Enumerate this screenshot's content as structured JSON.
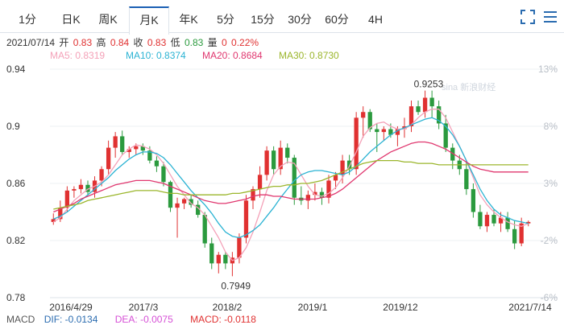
{
  "tabs": [
    "1分",
    "日K",
    "周K",
    "月K",
    "年K",
    "5分",
    "15分",
    "30分",
    "60分",
    "4H"
  ],
  "active_tab": "月K",
  "icons": {
    "fullscreen": "fullscreen-icon",
    "menu": "menu-icon"
  },
  "info": {
    "date": "2021/07/14",
    "open_label": "开",
    "open": "0.83",
    "high_label": "高",
    "high": "0.84",
    "close_label": "收",
    "close": "0.83",
    "low_label": "低",
    "low": "0.83",
    "vol_label": "量",
    "vol": "0",
    "change": "0.22%"
  },
  "ma": {
    "ma5": "MA5: 0.8319",
    "ma10": "MA10: 0.8374",
    "ma20": "MA20: 0.8684",
    "ma30": "MA30: 0.8730"
  },
  "colors": {
    "ma5": "#f4a1b8",
    "ma10": "#2bb3d3",
    "ma20": "#e0376f",
    "ma30": "#9bb62c",
    "up": "#e03131",
    "down": "#2b9a3e"
  },
  "watermark": "sina 新浪财经",
  "annotations": {
    "max": "0.9253",
    "min": "0.7949"
  },
  "macd": {
    "label": "MACD",
    "dif": "DIF: -0.0134",
    "dea": "DEA: -0.0075",
    "macd": "MACD: -0.0118"
  },
  "chart_data": {
    "type": "candlestick",
    "y_left_ticks": [
      "0.94",
      "0.9",
      "0.86",
      "0.82",
      "0.78"
    ],
    "y_right_ticks": [
      "13%",
      "8%",
      "3%",
      "-2%",
      "-6%"
    ],
    "x_ticks": [
      "2016/4/29",
      "2017/3",
      "2018/2",
      "2019/1",
      "2019/12",
      "2021/7/14"
    ],
    "ylim": [
      0.78,
      0.94
    ],
    "candles": [
      [
        0.833,
        0.839,
        0.831,
        0.835
      ],
      [
        0.835,
        0.848,
        0.833,
        0.843
      ],
      [
        0.843,
        0.858,
        0.84,
        0.855
      ],
      [
        0.855,
        0.858,
        0.85,
        0.856
      ],
      [
        0.856,
        0.863,
        0.853,
        0.859
      ],
      [
        0.859,
        0.862,
        0.852,
        0.854
      ],
      [
        0.854,
        0.865,
        0.85,
        0.862
      ],
      [
        0.862,
        0.872,
        0.858,
        0.87
      ],
      [
        0.87,
        0.89,
        0.866,
        0.885
      ],
      [
        0.885,
        0.896,
        0.878,
        0.893
      ],
      [
        0.893,
        0.897,
        0.88,
        0.882
      ],
      [
        0.882,
        0.886,
        0.878,
        0.884
      ],
      [
        0.884,
        0.888,
        0.88,
        0.886
      ],
      [
        0.886,
        0.888,
        0.88,
        0.883
      ],
      [
        0.883,
        0.886,
        0.874,
        0.876
      ],
      [
        0.876,
        0.879,
        0.868,
        0.872
      ],
      [
        0.872,
        0.875,
        0.858,
        0.861
      ],
      [
        0.861,
        0.862,
        0.84,
        0.843
      ],
      [
        0.843,
        0.85,
        0.822,
        0.846
      ],
      [
        0.846,
        0.85,
        0.842,
        0.849
      ],
      [
        0.849,
        0.852,
        0.843,
        0.845
      ],
      [
        0.845,
        0.848,
        0.836,
        0.838
      ],
      [
        0.838,
        0.84,
        0.815,
        0.818
      ],
      [
        0.818,
        0.822,
        0.8,
        0.804
      ],
      [
        0.804,
        0.812,
        0.797,
        0.81
      ],
      [
        0.81,
        0.812,
        0.8,
        0.804
      ],
      [
        0.804,
        0.812,
        0.795,
        0.808
      ],
      [
        0.808,
        0.825,
        0.804,
        0.822
      ],
      [
        0.822,
        0.852,
        0.818,
        0.848
      ],
      [
        0.848,
        0.858,
        0.842,
        0.856
      ],
      [
        0.856,
        0.872,
        0.85,
        0.866
      ],
      [
        0.866,
        0.886,
        0.862,
        0.883
      ],
      [
        0.883,
        0.886,
        0.866,
        0.87
      ],
      [
        0.87,
        0.89,
        0.866,
        0.885
      ],
      [
        0.885,
        0.888,
        0.874,
        0.878
      ],
      [
        0.878,
        0.88,
        0.845,
        0.85
      ],
      [
        0.85,
        0.858,
        0.845,
        0.848
      ],
      [
        0.848,
        0.855,
        0.842,
        0.852
      ],
      [
        0.852,
        0.86,
        0.848,
        0.854
      ],
      [
        0.854,
        0.857,
        0.845,
        0.85
      ],
      [
        0.85,
        0.866,
        0.846,
        0.862
      ],
      [
        0.862,
        0.868,
        0.856,
        0.866
      ],
      [
        0.866,
        0.88,
        0.86,
        0.876
      ],
      [
        0.876,
        0.88,
        0.866,
        0.87
      ],
      [
        0.87,
        0.91,
        0.866,
        0.906
      ],
      [
        0.906,
        0.914,
        0.892,
        0.91
      ],
      [
        0.91,
        0.912,
        0.896,
        0.898
      ],
      [
        0.898,
        0.902,
        0.882,
        0.896
      ],
      [
        0.896,
        0.9,
        0.89,
        0.898
      ],
      [
        0.898,
        0.902,
        0.892,
        0.894
      ],
      [
        0.894,
        0.9,
        0.886,
        0.898
      ],
      [
        0.898,
        0.906,
        0.892,
        0.9
      ],
      [
        0.9,
        0.918,
        0.896,
        0.914
      ],
      [
        0.914,
        0.918,
        0.908,
        0.91
      ],
      [
        0.91,
        0.925,
        0.906,
        0.92
      ],
      [
        0.92,
        0.925,
        0.906,
        0.914
      ],
      [
        0.914,
        0.918,
        0.898,
        0.902
      ],
      [
        0.902,
        0.908,
        0.882,
        0.885
      ],
      [
        0.885,
        0.888,
        0.87,
        0.876
      ],
      [
        0.876,
        0.88,
        0.866,
        0.87
      ],
      [
        0.87,
        0.875,
        0.852,
        0.856
      ],
      [
        0.856,
        0.86,
        0.836,
        0.84
      ],
      [
        0.84,
        0.845,
        0.828,
        0.83
      ],
      [
        0.83,
        0.84,
        0.826,
        0.838
      ],
      [
        0.838,
        0.842,
        0.83,
        0.832
      ],
      [
        0.832,
        0.84,
        0.826,
        0.836
      ],
      [
        0.836,
        0.84,
        0.826,
        0.828
      ],
      [
        0.828,
        0.834,
        0.814,
        0.818
      ],
      [
        0.818,
        0.836,
        0.816,
        0.832
      ],
      [
        0.832,
        0.834,
        0.83,
        0.833
      ]
    ],
    "ma5": [
      0.833,
      0.836,
      0.842,
      0.848,
      0.852,
      0.856,
      0.858,
      0.861,
      0.866,
      0.873,
      0.88,
      0.884,
      0.887,
      0.886,
      0.884,
      0.88,
      0.874,
      0.866,
      0.858,
      0.852,
      0.846,
      0.843,
      0.838,
      0.83,
      0.822,
      0.812,
      0.806,
      0.808,
      0.815,
      0.826,
      0.84,
      0.855,
      0.866,
      0.872,
      0.875,
      0.874,
      0.866,
      0.858,
      0.852,
      0.851,
      0.853,
      0.857,
      0.864,
      0.872,
      0.882,
      0.893,
      0.899,
      0.902,
      0.903,
      0.9,
      0.898,
      0.898,
      0.901,
      0.906,
      0.91,
      0.912,
      0.912,
      0.906,
      0.896,
      0.886,
      0.876,
      0.864,
      0.852,
      0.845,
      0.84,
      0.836,
      0.833,
      0.831,
      0.83,
      0.832
    ],
    "ma10": [
      0.835,
      0.837,
      0.84,
      0.844,
      0.848,
      0.852,
      0.856,
      0.86,
      0.864,
      0.869,
      0.873,
      0.877,
      0.88,
      0.882,
      0.882,
      0.881,
      0.878,
      0.873,
      0.867,
      0.861,
      0.855,
      0.85,
      0.845,
      0.839,
      0.832,
      0.826,
      0.823,
      0.822,
      0.824,
      0.827,
      0.831,
      0.837,
      0.843,
      0.85,
      0.856,
      0.862,
      0.866,
      0.868,
      0.869,
      0.869,
      0.868,
      0.867,
      0.866,
      0.868,
      0.872,
      0.877,
      0.882,
      0.886,
      0.89,
      0.894,
      0.897,
      0.899,
      0.901,
      0.903,
      0.905,
      0.906,
      0.904,
      0.9,
      0.894,
      0.886,
      0.876,
      0.866,
      0.856,
      0.848,
      0.842,
      0.838,
      0.836,
      0.834,
      0.833,
      0.832
    ],
    "ma20": [
      0.84,
      0.842,
      0.844,
      0.846,
      0.849,
      0.851,
      0.853,
      0.855,
      0.857,
      0.859,
      0.86,
      0.861,
      0.862,
      0.862,
      0.862,
      0.861,
      0.86,
      0.858,
      0.856,
      0.854,
      0.852,
      0.85,
      0.848,
      0.847,
      0.846,
      0.846,
      0.847,
      0.848,
      0.849,
      0.851,
      0.852,
      0.852,
      0.851,
      0.851,
      0.85,
      0.849,
      0.849,
      0.849,
      0.849,
      0.85,
      0.851,
      0.853,
      0.856,
      0.86,
      0.864,
      0.868,
      0.872,
      0.876,
      0.879,
      0.882,
      0.884,
      0.886,
      0.888,
      0.889,
      0.889,
      0.888,
      0.886,
      0.884,
      0.881,
      0.878,
      0.875,
      0.872,
      0.87,
      0.869,
      0.868,
      0.868,
      0.868,
      0.868,
      0.868,
      0.868
    ],
    "ma30": [
      0.842,
      0.843,
      0.844,
      0.845,
      0.846,
      0.848,
      0.849,
      0.85,
      0.851,
      0.852,
      0.853,
      0.854,
      0.855,
      0.855,
      0.855,
      0.855,
      0.854,
      0.853,
      0.853,
      0.852,
      0.852,
      0.852,
      0.852,
      0.852,
      0.852,
      0.852,
      0.853,
      0.853,
      0.854,
      0.855,
      0.856,
      0.857,
      0.858,
      0.858,
      0.859,
      0.859,
      0.86,
      0.86,
      0.861,
      0.862,
      0.864,
      0.866,
      0.868,
      0.87,
      0.872,
      0.874,
      0.875,
      0.876,
      0.876,
      0.876,
      0.876,
      0.875,
      0.875,
      0.874,
      0.874,
      0.874,
      0.873,
      0.873,
      0.873,
      0.873,
      0.873,
      0.873,
      0.873,
      0.873,
      0.873,
      0.873,
      0.873,
      0.873,
      0.873,
      0.873
    ]
  }
}
